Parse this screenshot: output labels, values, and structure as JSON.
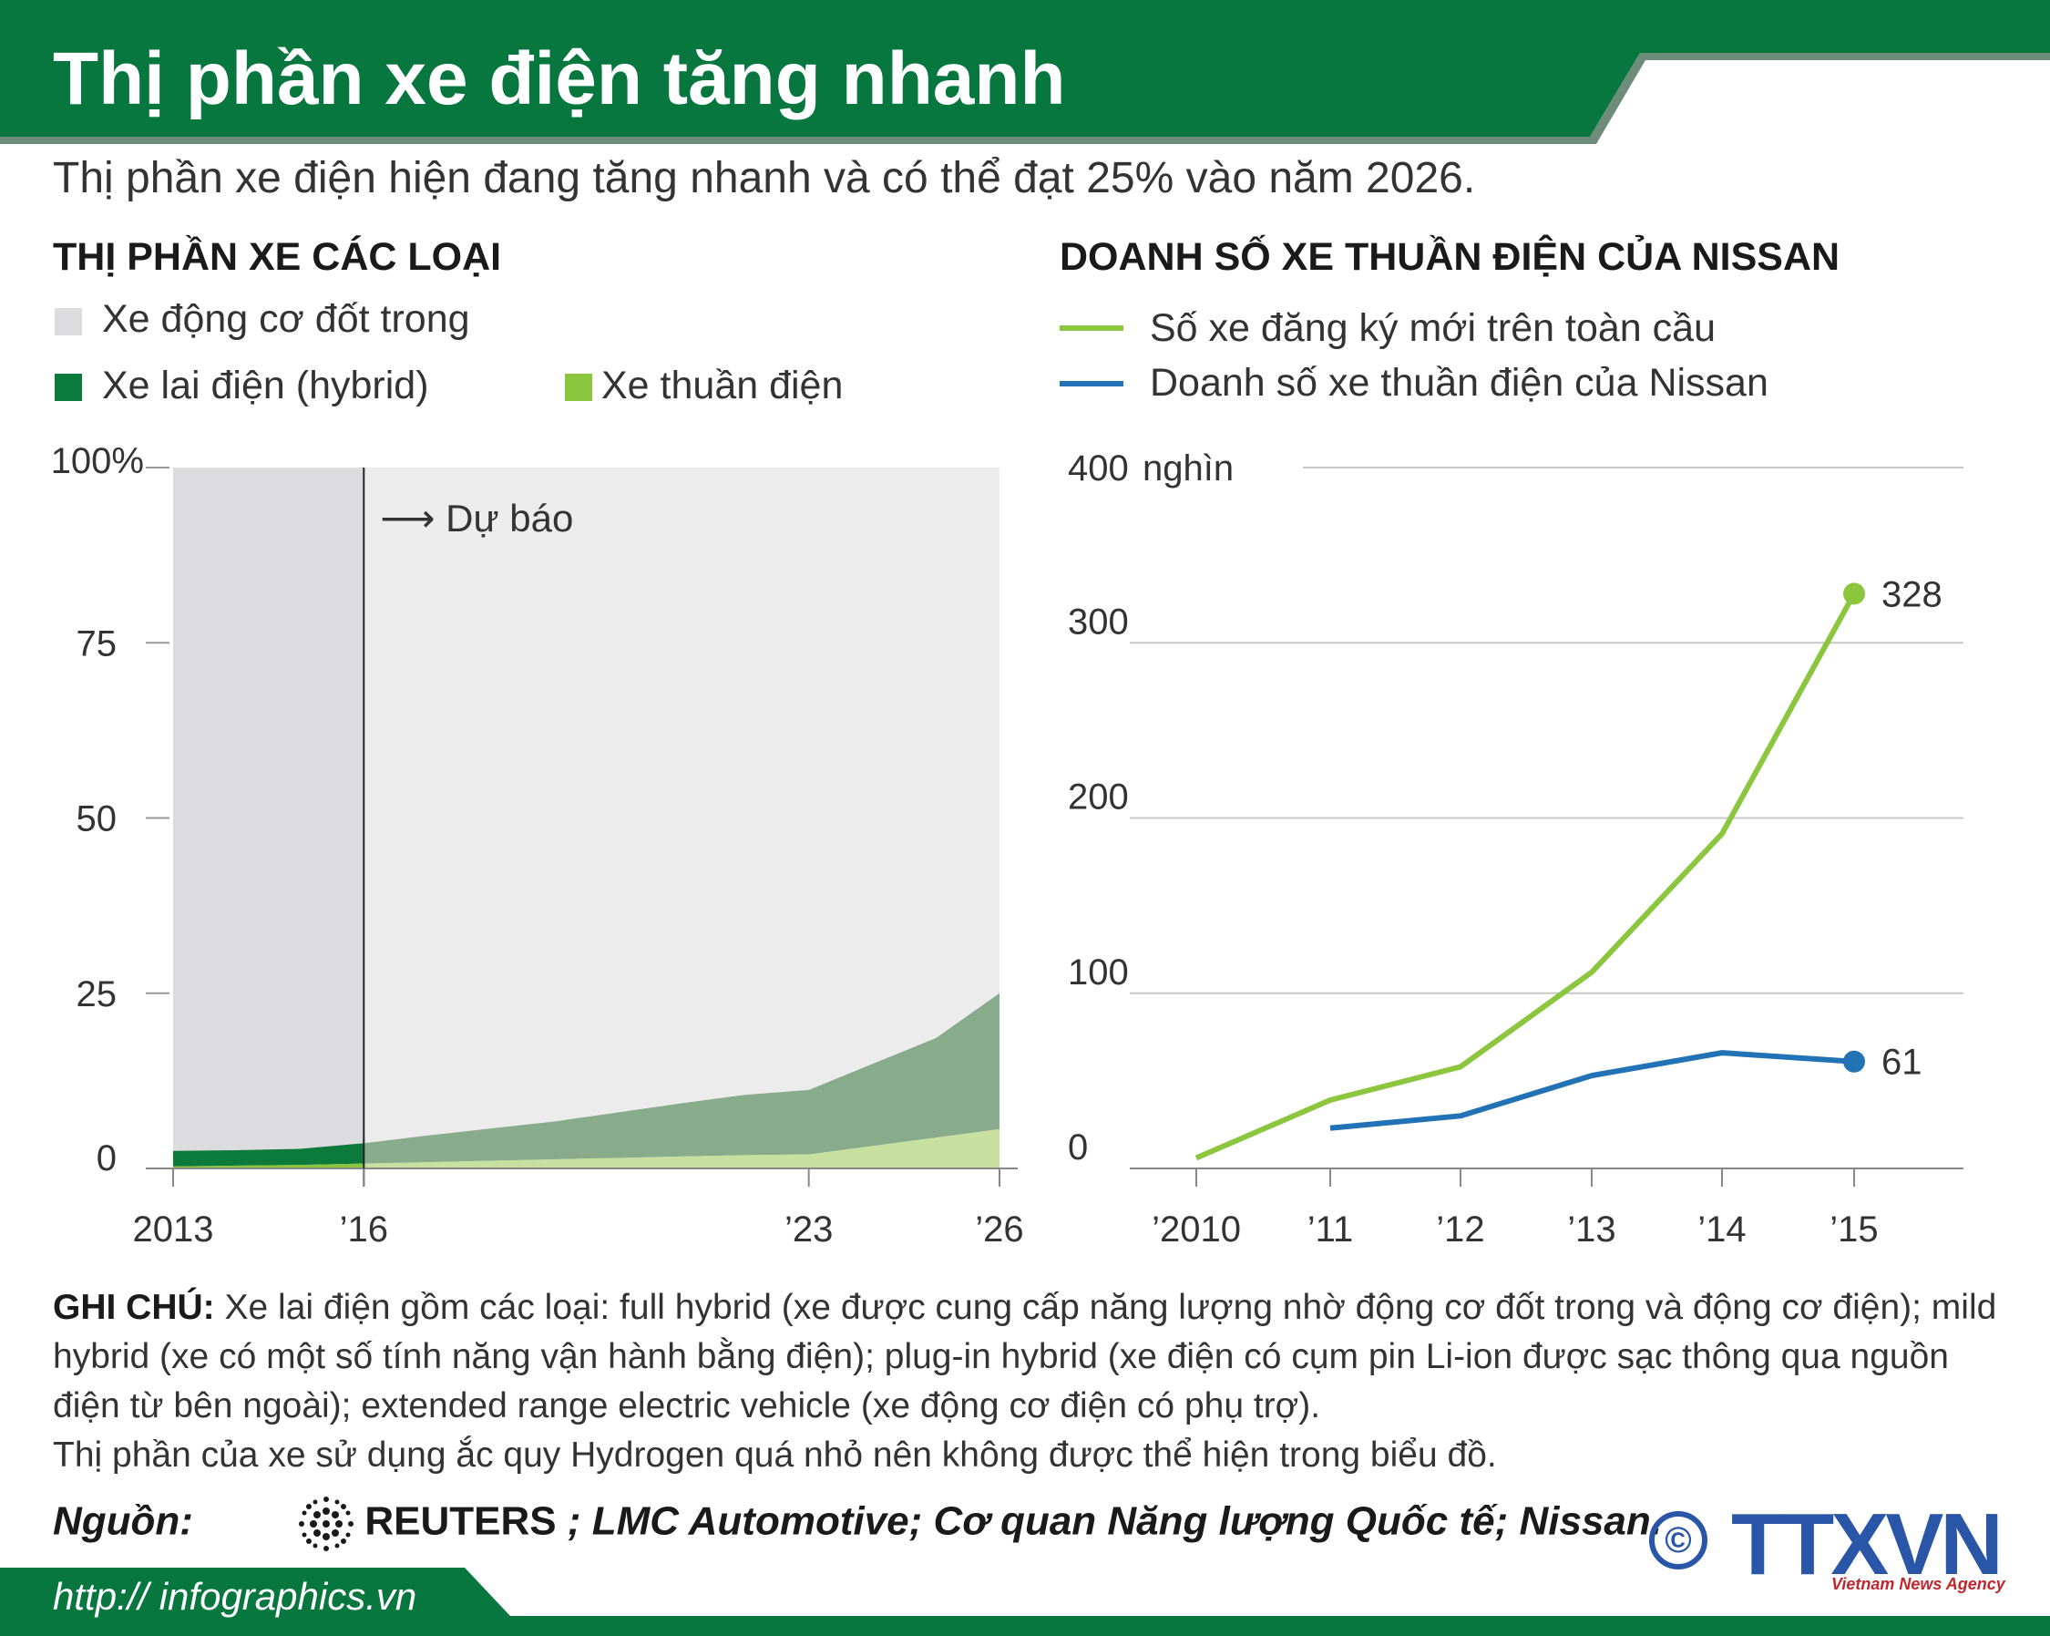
{
  "header": {
    "title": "Thị phần xe điện tăng nhanh",
    "subtitle": "Thị phần xe điện hiện đang tăng nhanh và có thể đạt 25% vào năm 2026.",
    "band_color": "#07773f"
  },
  "left_chart": {
    "heading": "THỊ PHẦN XE CÁC LOẠI",
    "legend": [
      {
        "label": "Xe động cơ đốt trong",
        "color": "#dcdcde"
      },
      {
        "label": "Xe lai điện (hybrid)",
        "color": "#0b7a3b"
      },
      {
        "label": "Xe thuần điện",
        "color": "#8cc63f"
      }
    ],
    "forecast_label": "Dự báo",
    "forecast_arrow": "⟶"
  },
  "right_chart": {
    "heading": "DOANH SỐ XE THUẦN ĐIỆN CỦA NISSAN",
    "legend": [
      {
        "label": "Số xe đăng ký mới trên toàn cầu",
        "color": "#8cc63f"
      },
      {
        "label": "Doanh số xe thuần điện của Nissan",
        "color": "#2173b5"
      }
    ],
    "unit_label": "nghìn"
  },
  "chart_data": [
    {
      "type": "area",
      "x": [
        2013,
        2014,
        2015,
        2016,
        2017,
        2018,
        2019,
        2020,
        2021,
        2022,
        2023,
        2024,
        2025,
        2026
      ],
      "tick_labels": [
        "2013",
        "’16",
        "’23",
        "’26"
      ],
      "tick_values": [
        2013,
        2016,
        2023,
        2026
      ],
      "y_ticks": [
        "100%",
        "75",
        "50",
        "25",
        "0"
      ],
      "y_tick_values": [
        100,
        75,
        50,
        25,
        0
      ],
      "ylim": [
        0,
        100
      ],
      "forecast_start": 2016,
      "series": [
        {
          "name": "Xe thuần điện",
          "values": [
            0.3,
            0.4,
            0.5,
            0.7,
            0.9,
            1.1,
            1.3,
            1.5,
            1.7,
            1.9,
            2.0,
            3.2,
            4.4,
            5.6
          ]
        },
        {
          "name": "Xe lai điện (hybrid)",
          "values": [
            2.2,
            2.2,
            2.3,
            2.9,
            3.8,
            4.6,
            5.4,
            6.5,
            7.6,
            8.6,
            9.2,
            11.7,
            14.2,
            19.4
          ]
        },
        {
          "name": "Xe động cơ đốt trong",
          "values": [
            97.5,
            97.4,
            97.2,
            96.4,
            95.3,
            94.3,
            93.3,
            92.0,
            90.7,
            89.5,
            88.8,
            85.1,
            81.4,
            75.0
          ]
        }
      ]
    },
    {
      "type": "line",
      "x": [
        2010,
        2011,
        2012,
        2013,
        2014,
        2015
      ],
      "tick_labels": [
        "’2010",
        "’11",
        "’12",
        "’13",
        "’14",
        "’15"
      ],
      "y_ticks": [
        "400",
        "300",
        "200",
        "100",
        "0"
      ],
      "y_tick_values": [
        400,
        300,
        200,
        100,
        0
      ],
      "ylim": [
        0,
        400
      ],
      "series": [
        {
          "name": "Số xe đăng ký mới trên toàn cầu",
          "values": [
            6,
            39,
            58,
            112,
            191,
            328
          ],
          "end_label": "328"
        },
        {
          "name": "Doanh số xe thuần điện của Nissan",
          "values": [
            null,
            23,
            30,
            53,
            66,
            61
          ],
          "end_label": "61"
        }
      ]
    }
  ],
  "notes": {
    "label": "GHI CHÚ:",
    "text": " Xe lai điện gồm các loại: full hybrid  (xe được cung cấp năng lượng nhờ động cơ đốt trong và động cơ điện); mild hybrid  (xe có một số tính năng vận hành bằng điện); plug-in hybrid (xe điện có cụm pin Li-ion được sạc thông qua nguồn điện từ bên ngoài); extended range electric vehicle (xe động cơ điện có phụ trợ).",
    "line2": "Thị phần của xe sử dụng ắc quy Hydrogen  quá nhỏ nên không được thể hiện trong biểu đồ."
  },
  "source": {
    "label": "Nguồn:",
    "reuters": "REUTERS",
    "rest": " ; LMC Automotive; Cơ quan Năng lượng Quốc tế; Nissan."
  },
  "footer": {
    "url": "http:// infographics.vn",
    "copyright": "©",
    "brand": "TTXVN",
    "agency": "Vietnam News Agency"
  }
}
